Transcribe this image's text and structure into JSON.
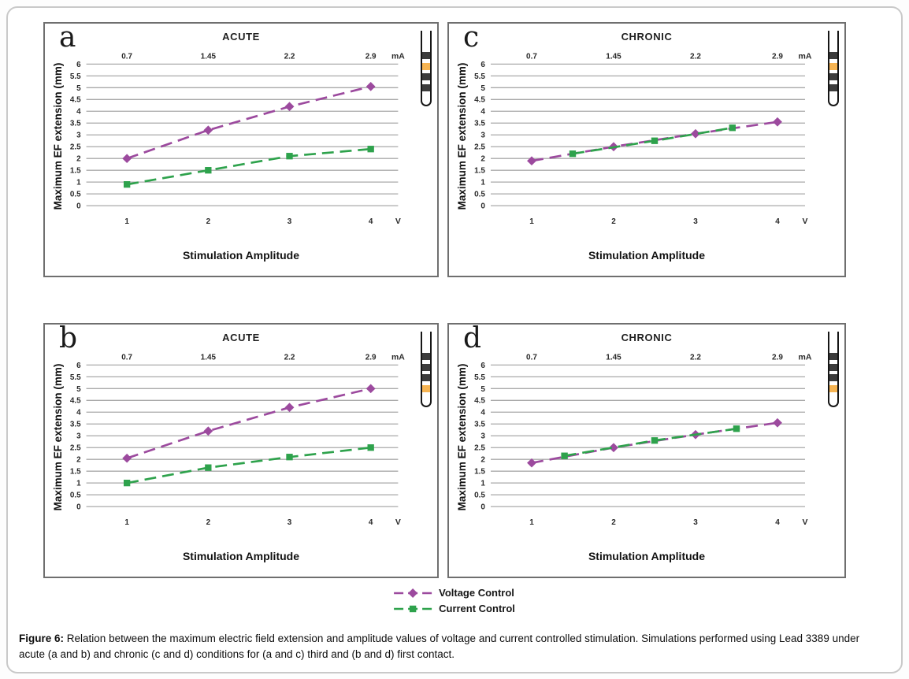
{
  "colors": {
    "voltage": "#9c4a9e",
    "current": "#2ea24c",
    "grid": "#a9a9a9",
    "electrode_dark": "#3c3c3c",
    "electrode_active": "#f6b452"
  },
  "panels": [
    {
      "letter": "a",
      "electrode_contacts": [
        "dark",
        "active",
        "dark",
        "dark"
      ]
    },
    {
      "letter": "c",
      "electrode_contacts": [
        "dark",
        "active",
        "dark",
        "dark"
      ]
    },
    {
      "letter": "b",
      "electrode_contacts": [
        "dark",
        "dark",
        "dark",
        "active"
      ]
    },
    {
      "letter": "d",
      "electrode_contacts": [
        "dark",
        "dark",
        "dark",
        "active"
      ]
    }
  ],
  "chart_data": [
    {
      "panel": "a",
      "type": "line",
      "title": "ACUTE",
      "ylabel": "Maximum EF extension (mm)",
      "xlabel": "Stimulation Amplitude",
      "ylim": [
        0,
        6
      ],
      "ytick_step": 0.5,
      "grid": "horizontal",
      "top_axis": {
        "labels": [
          "0.7",
          "1.45",
          "2.2",
          "2.9"
        ],
        "unit": "mA"
      },
      "x_axis": {
        "labels": [
          "1",
          "2",
          "3",
          "4"
        ],
        "unit": "V"
      },
      "series": [
        {
          "name": "Voltage Control",
          "color_key": "voltage",
          "marker": "diamond",
          "points": [
            [
              1,
              2.0
            ],
            [
              2,
              3.2
            ],
            [
              3,
              4.2
            ],
            [
              4,
              5.05
            ]
          ]
        },
        {
          "name": "Current Control",
          "color_key": "current",
          "marker": "square",
          "points": [
            [
              1,
              0.9
            ],
            [
              2,
              1.5
            ],
            [
              3,
              2.1
            ],
            [
              4,
              2.4
            ]
          ]
        }
      ]
    },
    {
      "panel": "c",
      "type": "line",
      "title": "CHRONIC",
      "ylabel": "Maximum EF extension (mm)",
      "xlabel": "Stimulation Amplitude",
      "ylim": [
        0,
        6
      ],
      "ytick_step": 0.5,
      "grid": "horizontal",
      "top_axis": {
        "labels": [
          "0.7",
          "1.45",
          "2.2",
          "2.9"
        ],
        "unit": "mA"
      },
      "x_axis": {
        "labels": [
          "1",
          "2",
          "3",
          "4"
        ],
        "unit": "V"
      },
      "series": [
        {
          "name": "Voltage Control",
          "color_key": "voltage",
          "marker": "diamond",
          "points": [
            [
              1,
              1.9
            ],
            [
              2,
              2.5
            ],
            [
              3,
              3.05
            ],
            [
              4,
              3.55
            ]
          ]
        },
        {
          "name": "Current Control",
          "color_key": "current",
          "marker": "square",
          "points": [
            [
              1.5,
              2.2
            ],
            [
              2.5,
              2.75
            ],
            [
              3.45,
              3.3
            ]
          ]
        }
      ]
    },
    {
      "panel": "b",
      "type": "line",
      "title": "ACUTE",
      "ylabel": "Maximum EF extension (mm)",
      "xlabel": "Stimulation Amplitude",
      "ylim": [
        0,
        6
      ],
      "ytick_step": 0.5,
      "grid": "horizontal",
      "top_axis": {
        "labels": [
          "0.7",
          "1.45",
          "2.2",
          "2.9"
        ],
        "unit": "mA"
      },
      "x_axis": {
        "labels": [
          "1",
          "2",
          "3",
          "4"
        ],
        "unit": "V"
      },
      "series": [
        {
          "name": "Voltage Control",
          "color_key": "voltage",
          "marker": "diamond",
          "points": [
            [
              1,
              2.05
            ],
            [
              2,
              3.2
            ],
            [
              3,
              4.2
            ],
            [
              4,
              5.0
            ]
          ]
        },
        {
          "name": "Current Control",
          "color_key": "current",
          "marker": "square",
          "points": [
            [
              1,
              1.0
            ],
            [
              2,
              1.65
            ],
            [
              3,
              2.1
            ],
            [
              4,
              2.5
            ]
          ]
        }
      ]
    },
    {
      "panel": "d",
      "type": "line",
      "title": "CHRONIC",
      "ylabel": "Maximum EF extension (mm)",
      "xlabel": "Stimulation Amplitude",
      "ylim": [
        0,
        6
      ],
      "ytick_step": 0.5,
      "grid": "horizontal",
      "top_axis": {
        "labels": [
          "0.7",
          "1.45",
          "2.2",
          "2.9"
        ],
        "unit": "mA"
      },
      "x_axis": {
        "labels": [
          "1",
          "2",
          "3",
          "4"
        ],
        "unit": "V"
      },
      "series": [
        {
          "name": "Voltage Control",
          "color_key": "voltage",
          "marker": "diamond",
          "points": [
            [
              1,
              1.85
            ],
            [
              2,
              2.5
            ],
            [
              3,
              3.05
            ],
            [
              4,
              3.55
            ]
          ]
        },
        {
          "name": "Current Control",
          "color_key": "current",
          "marker": "square",
          "points": [
            [
              1.4,
              2.15
            ],
            [
              2.5,
              2.8
            ],
            [
              3.5,
              3.3
            ]
          ]
        }
      ]
    }
  ],
  "legend": [
    {
      "label": "Voltage Control",
      "color_key": "voltage",
      "marker": "diamond"
    },
    {
      "label": "Current Control",
      "color_key": "current",
      "marker": "square"
    }
  ],
  "caption": {
    "prefix": "Figure 6:",
    "body": "Relation between the maximum electric field extension and amplitude values of voltage and current controlled stimulation. Simulations performed using Lead 3389 under acute (a and b) and chronic (c and d) conditions for (a and c) third and (b and d) first contact."
  }
}
